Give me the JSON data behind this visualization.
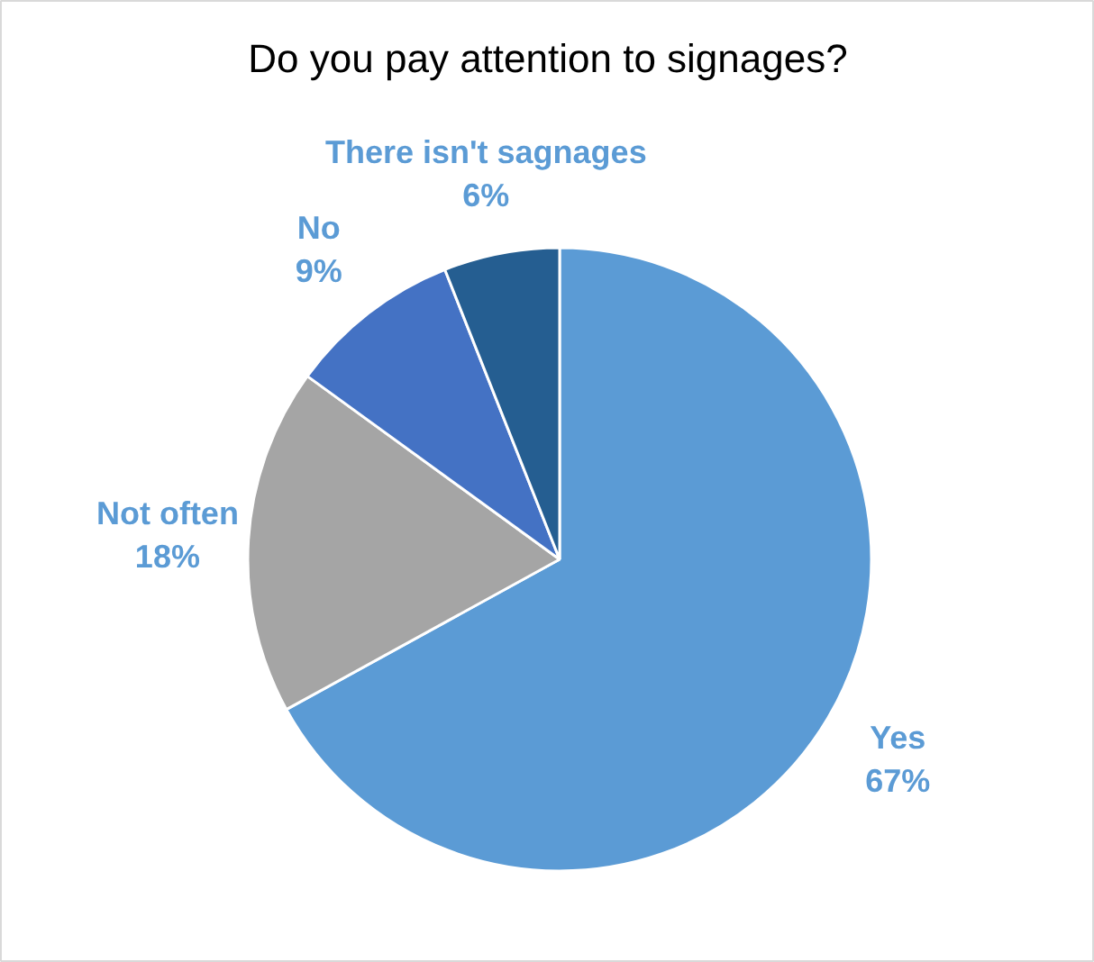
{
  "chart_data": {
    "type": "pie",
    "title": "Do you pay attention to signages?",
    "categories": [
      "Yes",
      "Not often",
      "No",
      "There isn't sagnages"
    ],
    "values": [
      67,
      18,
      9,
      6
    ],
    "value_labels": [
      "67%",
      "18%",
      "9%",
      "6%"
    ],
    "colors": [
      "#5b9bd5",
      "#a5a5a5",
      "#4472c4",
      "#255e91"
    ]
  }
}
